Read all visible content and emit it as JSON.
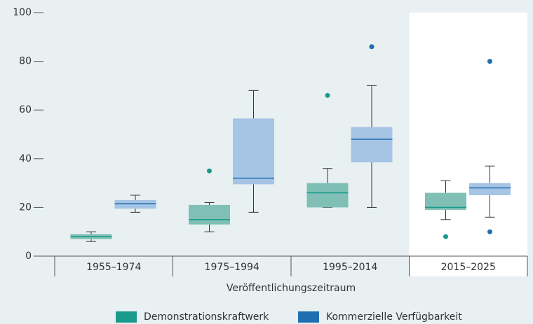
{
  "chart_data": {
    "type": "box",
    "x_label": "Veröffentlichungszeitraum",
    "categories": [
      "1955–1974",
      "1975–1994",
      "1995–2014",
      "2015–2025"
    ],
    "ylim": [
      0,
      100
    ],
    "yticks": [
      0,
      20,
      40,
      60,
      80,
      100
    ],
    "legend": "bottom",
    "series": [
      {
        "name": "Demonstrationskraftwerk",
        "color": "#1a9a8a",
        "box_color": "#7fbfb5",
        "boxes": [
          {
            "min": 6,
            "q1": 7,
            "median": 8,
            "q3": 9,
            "max": 10,
            "outliers": []
          },
          {
            "min": 10,
            "q1": 13,
            "median": 15,
            "q3": 21,
            "max": 22,
            "outliers": [
              35
            ]
          },
          {
            "min": 20,
            "q1": 20,
            "median": 26,
            "q3": 30,
            "max": 36,
            "outliers": [
              66
            ]
          },
          {
            "min": 15,
            "q1": 19,
            "median": 20,
            "q3": 26,
            "max": 31,
            "outliers": [
              8
            ]
          }
        ]
      },
      {
        "name": "Kommerzielle Verfügbarkeit",
        "color": "#1f6fb0",
        "box_color": "#a6c4e4",
        "boxes": [
          {
            "min": 18,
            "q1": 19.5,
            "median": 21.5,
            "q3": 23,
            "max": 25,
            "outliers": []
          },
          {
            "min": 18,
            "q1": 29.5,
            "median": 32,
            "q3": 56.5,
            "max": 68,
            "outliers": []
          },
          {
            "min": 20,
            "q1": 38.5,
            "median": 48,
            "q3": 53,
            "max": 70,
            "outliers": [
              86
            ]
          },
          {
            "min": 16,
            "q1": 25,
            "median": 28,
            "q3": 30,
            "max": 37,
            "outliers": [
              80,
              10
            ]
          }
        ]
      }
    ]
  }
}
